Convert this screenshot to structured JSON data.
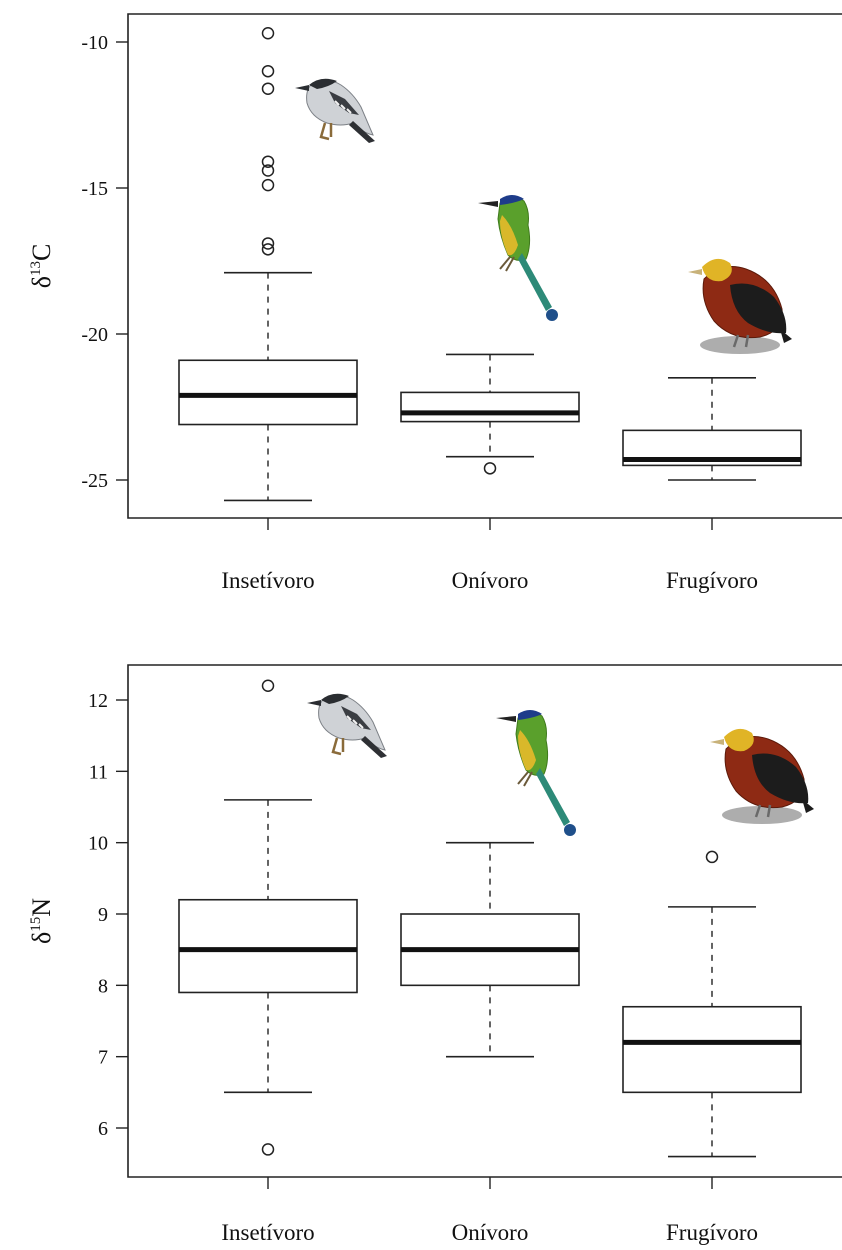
{
  "chart_data": [
    {
      "type": "boxplot",
      "ylabel_symbol": "δ",
      "ylabel_sup": "13",
      "ylabel_element": "C",
      "ylim": [
        -26.2,
        -9.1
      ],
      "yticks": [
        -10,
        -15,
        -20,
        -25
      ],
      "ytick_labels": [
        "-10",
        "-15",
        "-20",
        "-25"
      ],
      "categories": [
        "Insetívoro",
        "Onívoro",
        "Frugívoro"
      ],
      "boxes": [
        {
          "category": "Insetívoro",
          "whisker_low": -25.7,
          "q1": -23.1,
          "median": -22.1,
          "q3": -20.9,
          "whisker_high": -17.9,
          "outliers": [
            -9.7,
            -11.0,
            -11.6,
            -14.1,
            -14.4,
            -14.9,
            -16.9,
            -17.1
          ]
        },
        {
          "category": "Onívoro",
          "whisker_low": -24.2,
          "q1": -23.0,
          "median": -22.7,
          "q3": -22.0,
          "whisker_high": -20.7,
          "outliers": [
            -24.6
          ]
        },
        {
          "category": "Frugívoro",
          "whisker_low": -25.0,
          "q1": -24.5,
          "median": -24.3,
          "q3": -23.3,
          "whisker_high": -21.5,
          "outliers": []
        }
      ],
      "icons": [
        "antshrike-bird-icon",
        "motmot-bird-icon",
        "manakin-bird-icon"
      ]
    },
    {
      "type": "boxplot",
      "ylabel_symbol": "δ",
      "ylabel_sup": "15",
      "ylabel_element": "N",
      "ylim": [
        5.3,
        12.5
      ],
      "yticks": [
        12,
        11,
        10,
        9,
        8,
        7,
        6
      ],
      "ytick_labels": [
        "12",
        "11",
        "10",
        "9",
        "8",
        "7",
        "6"
      ],
      "categories": [
        "Insetívoro",
        "Onívoro",
        "Frugívoro"
      ],
      "boxes": [
        {
          "category": "Insetívoro",
          "whisker_low": 6.5,
          "q1": 7.9,
          "median": 8.5,
          "q3": 9.2,
          "whisker_high": 10.6,
          "outliers": [
            12.2,
            5.7
          ]
        },
        {
          "category": "Onívoro",
          "whisker_low": 7.0,
          "q1": 8.0,
          "median": 8.5,
          "q3": 9.0,
          "whisker_high": 10.0,
          "outliers": []
        },
        {
          "category": "Frugívoro",
          "whisker_low": 5.6,
          "q1": 6.5,
          "median": 7.2,
          "q3": 7.7,
          "whisker_high": 9.1,
          "outliers": [
            9.8
          ]
        }
      ],
      "icons": [
        "antshrike-bird-icon",
        "motmot-bird-icon",
        "manakin-bird-icon"
      ]
    }
  ]
}
